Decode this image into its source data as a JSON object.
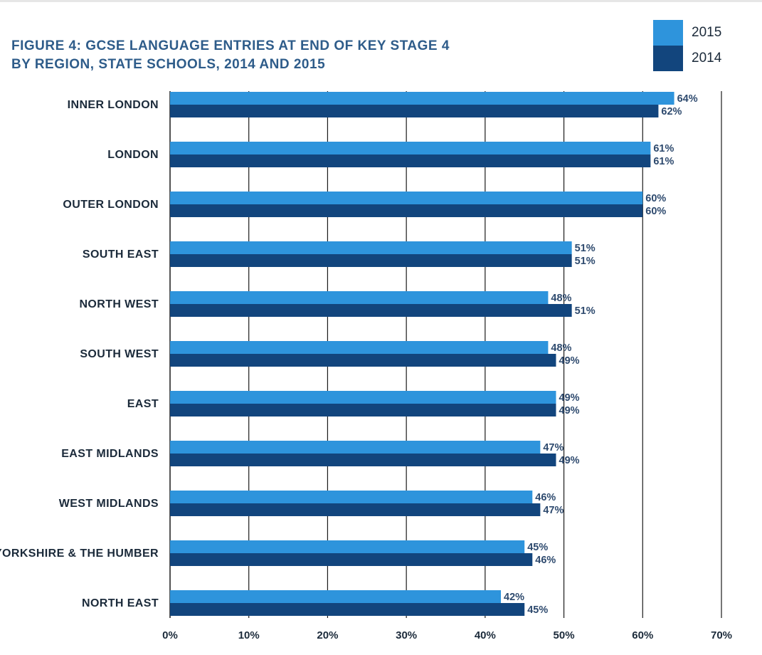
{
  "chart_data": {
    "type": "bar",
    "orientation": "horizontal",
    "title_lines": [
      "FIGURE 4: GCSE LANGUAGE ENTRIES AT END OF KEY STAGE 4",
      "BY REGION, STATE SCHOOLS, 2014 AND 2015"
    ],
    "categories": [
      "INNER LONDON",
      "LONDON",
      "OUTER LONDON",
      "SOUTH EAST",
      "NORTH WEST",
      "SOUTH WEST",
      "EAST",
      "EAST MIDLANDS",
      "WEST MIDLANDS",
      "YORKSHIRE & THE HUMBER",
      "NORTH EAST"
    ],
    "series": [
      {
        "name": "2015",
        "color": "#2e94dc",
        "values": [
          64,
          61,
          60,
          51,
          48,
          48,
          49,
          47,
          46,
          45,
          42
        ],
        "labels": [
          "64%",
          "61%",
          "60%",
          "51%",
          "48%",
          "48%",
          "49%",
          "47%",
          "46%",
          "45%",
          "42%"
        ]
      },
      {
        "name": "2014",
        "color": "#12457d",
        "values": [
          62,
          61,
          60,
          51,
          51,
          49,
          49,
          49,
          47,
          46,
          45
        ],
        "labels": [
          "62%",
          "61%",
          "60%",
          "51%",
          "51%",
          "49%",
          "49%",
          "49%",
          "47%",
          "46%",
          "45%"
        ]
      }
    ],
    "xlim": [
      0,
      70
    ],
    "x_ticks": [
      0,
      10,
      20,
      30,
      40,
      50,
      60,
      70
    ],
    "x_tick_labels": [
      "0%",
      "10%",
      "20%",
      "30%",
      "40%",
      "50%",
      "60%",
      "70%"
    ],
    "grid": "vertical",
    "legend_position": "top-right"
  }
}
